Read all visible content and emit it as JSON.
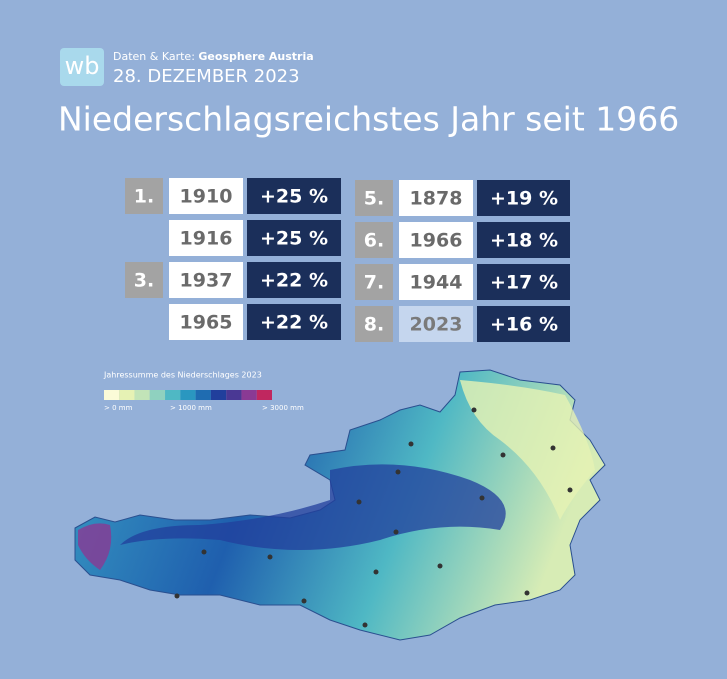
{
  "header": {
    "logo": "wb",
    "source_prefix": "Daten & Karte:",
    "source": "Geosphere Austria",
    "date": "28. DEZEMBER 2023",
    "title": "Niederschlagsreichstes Jahr seit 1966"
  },
  "table": {
    "rows": [
      {
        "rank": "1.",
        "year": "1910",
        "change": "+25 %"
      },
      {
        "year": "1916",
        "change": "+25 %"
      },
      {
        "rank": "3.",
        "year": "1937",
        "change": "+22 %"
      },
      {
        "year": "1965",
        "change": "+22 %"
      },
      {
        "rank": "5.",
        "year": "1878",
        "change": "+19 %"
      },
      {
        "rank": "6.",
        "year": "1966",
        "change": "+18 %"
      },
      {
        "rank": "7.",
        "year": "1944",
        "change": "+17 %"
      },
      {
        "rank": "8.",
        "year": "2023",
        "change": "+16 %",
        "highlight": true
      }
    ]
  },
  "legend": {
    "title": "Jahressumme des Niederschlages 2023",
    "colors": [
      "#fbfbd8",
      "#e6f2b4",
      "#c2e4b8",
      "#8fd1bf",
      "#4fb8c4",
      "#2a97c0",
      "#1f6cb1",
      "#213f9c",
      "#4a3894",
      "#8a3a94",
      "#c0275f"
    ],
    "labels": [
      "> 0 mm",
      "> 1000 mm",
      "> 3000 mm"
    ]
  }
}
